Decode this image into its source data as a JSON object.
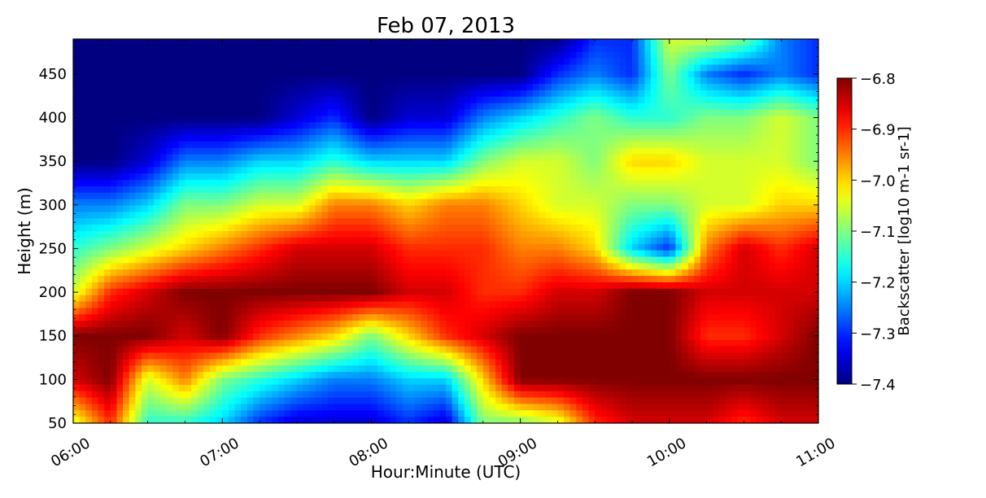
{
  "chart_data": {
    "type": "heatmap",
    "title": "Feb 07, 2013",
    "xlabel": "Hour:Minute (UTC)",
    "ylabel": "Height (m)",
    "xlim": [
      "06:00",
      "11:00"
    ],
    "ylim": [
      50,
      490
    ],
    "x_ticks": [
      "06:00",
      "07:00",
      "08:00",
      "09:00",
      "10:00",
      "11:00"
    ],
    "y_ticks": [
      50,
      100,
      150,
      200,
      250,
      300,
      350,
      400,
      450
    ],
    "colormap": "jet",
    "colors": [
      "#00007f",
      "#0000ff",
      "#007fff",
      "#00ffff",
      "#7fff7f",
      "#ffff00",
      "#ff7f00",
      "#ff0000",
      "#7f0000"
    ],
    "colorbar": {
      "label": "Backscatter [log10 m-1 sr-1]",
      "range": [
        -7.4,
        -6.8
      ],
      "ticks": [
        "-6.8",
        "-6.9",
        "-7.0",
        "-7.1",
        "-7.2",
        "-7.3",
        "-7.4"
      ],
      "position": "right"
    },
    "grid": false,
    "x_hours": [
      6.0,
      6.25,
      6.5,
      6.75,
      7.0,
      7.25,
      7.5,
      7.75,
      8.0,
      8.25,
      8.5,
      8.75,
      9.0,
      9.25,
      9.5,
      9.75,
      10.0,
      10.25,
      10.5,
      10.75,
      11.0
    ],
    "heights_m": [
      50,
      100,
      150,
      200,
      250,
      300,
      350,
      400,
      450,
      490
    ],
    "values": [
      [
        -7.05,
        -6.9,
        -7.15,
        -7.15,
        -7.2,
        -7.3,
        -7.35,
        -7.35,
        -7.35,
        -7.3,
        -7.35,
        -7.1,
        -7.1,
        -7.05,
        -6.9,
        -6.85,
        -6.85,
        -6.85,
        -6.9,
        -6.85,
        -6.85
      ],
      [
        -6.85,
        -6.8,
        -7.05,
        -6.95,
        -7.1,
        -7.15,
        -7.2,
        -7.25,
        -7.25,
        -7.2,
        -7.2,
        -7.0,
        -6.8,
        -6.8,
        -6.8,
        -6.8,
        -6.8,
        -6.8,
        -6.8,
        -6.8,
        -6.8
      ],
      [
        -6.8,
        -6.8,
        -6.8,
        -6.85,
        -6.8,
        -6.9,
        -6.95,
        -7.0,
        -7.1,
        -7.0,
        -6.9,
        -6.85,
        -6.8,
        -6.8,
        -6.8,
        -6.8,
        -6.8,
        -6.9,
        -6.9,
        -6.85,
        -6.8
      ],
      [
        -7.05,
        -6.9,
        -6.85,
        -6.8,
        -6.8,
        -6.8,
        -6.8,
        -6.8,
        -6.8,
        -6.85,
        -6.85,
        -6.9,
        -6.9,
        -6.85,
        -6.85,
        -6.8,
        -6.8,
        -6.85,
        -6.85,
        -6.85,
        -6.85
      ],
      [
        -7.15,
        -7.1,
        -7.05,
        -7.0,
        -6.95,
        -6.9,
        -6.85,
        -6.85,
        -6.85,
        -6.9,
        -6.9,
        -6.9,
        -6.95,
        -6.95,
        -7.0,
        -7.2,
        -7.3,
        -6.95,
        -6.85,
        -6.9,
        -6.85
      ],
      [
        -7.25,
        -7.25,
        -7.2,
        -7.1,
        -7.1,
        -7.05,
        -7.05,
        -6.95,
        -6.95,
        -7.0,
        -6.95,
        -6.95,
        -7.0,
        -7.05,
        -7.05,
        -7.1,
        -7.1,
        -7.05,
        -7.05,
        -7.0,
        -7.0
      ],
      [
        -7.4,
        -7.4,
        -7.35,
        -7.25,
        -7.25,
        -7.2,
        -7.2,
        -7.15,
        -7.2,
        -7.2,
        -7.2,
        -7.1,
        -7.05,
        -7.05,
        -7.1,
        -7.0,
        -7.0,
        -7.05,
        -7.05,
        -7.05,
        -7.1
      ],
      [
        -7.4,
        -7.4,
        -7.4,
        -7.4,
        -7.4,
        -7.4,
        -7.35,
        -7.3,
        -7.4,
        -7.35,
        -7.35,
        -7.25,
        -7.2,
        -7.15,
        -7.1,
        -7.15,
        -7.15,
        -7.1,
        -7.1,
        -7.05,
        -7.1
      ],
      [
        -7.4,
        -7.4,
        -7.4,
        -7.4,
        -7.4,
        -7.4,
        -7.4,
        -7.4,
        -7.4,
        -7.4,
        -7.4,
        -7.4,
        -7.4,
        -7.3,
        -7.25,
        -7.3,
        -7.1,
        -7.25,
        -7.3,
        -7.25,
        -7.3
      ],
      [
        -7.4,
        -7.4,
        -7.4,
        -7.4,
        -7.4,
        -7.4,
        -7.4,
        -7.4,
        -7.4,
        -7.4,
        -7.4,
        -7.4,
        -7.4,
        -7.4,
        -7.3,
        -7.3,
        -7.05,
        -7.05,
        -7.1,
        -7.25,
        -7.3
      ]
    ]
  }
}
